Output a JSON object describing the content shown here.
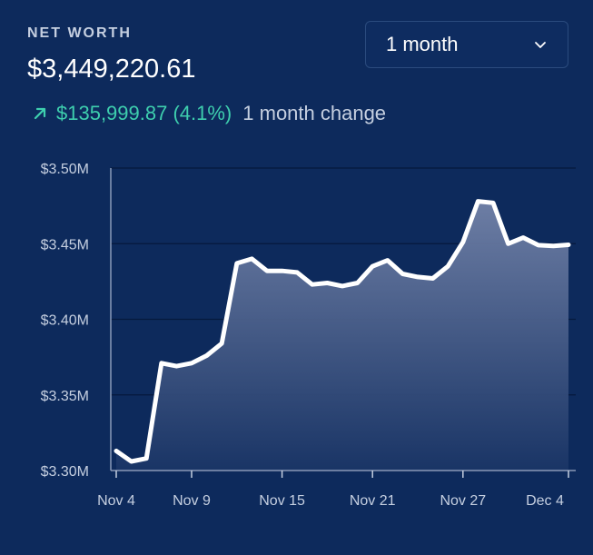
{
  "header": {
    "label": "NET WORTH",
    "value": "$3,449,220.61",
    "change_amount": "$135,999.87 (4.1%)",
    "change_period": "1 month change",
    "change_icon": "arrow-up-right-icon",
    "change_color": "#3ecfae"
  },
  "range_select": {
    "selected": "1 month",
    "icon": "chevron-down-icon"
  },
  "chart_data": {
    "type": "area",
    "ylim": [
      3300000,
      3500000
    ],
    "y_ticks": [
      {
        "value": 3500000,
        "label": "$3.50M"
      },
      {
        "value": 3450000,
        "label": "$3.45M"
      },
      {
        "value": 3400000,
        "label": "$3.40M"
      },
      {
        "value": 3350000,
        "label": "$3.35M"
      },
      {
        "value": 3300000,
        "label": "$3.30M"
      }
    ],
    "x_ticks": [
      {
        "date": "Nov 4",
        "label": "Nov 4"
      },
      {
        "date": "Nov 9",
        "label": "Nov 9"
      },
      {
        "date": "Nov 15",
        "label": "Nov 15"
      },
      {
        "date": "Nov 21",
        "label": "Nov 21"
      },
      {
        "date": "Nov 27",
        "label": "Nov 27"
      },
      {
        "date": "Dec 4",
        "label": "Dec 4"
      }
    ],
    "grid": true,
    "line_color": "#ffffff",
    "points": [
      {
        "date": "Nov 4",
        "value": 3313000
      },
      {
        "date": "Nov 5",
        "value": 3306000
      },
      {
        "date": "Nov 6",
        "value": 3308000
      },
      {
        "date": "Nov 7",
        "value": 3371000
      },
      {
        "date": "Nov 8",
        "value": 3369000
      },
      {
        "date": "Nov 9",
        "value": 3371000
      },
      {
        "date": "Nov 10",
        "value": 3376000
      },
      {
        "date": "Nov 11",
        "value": 3384000
      },
      {
        "date": "Nov 12",
        "value": 3437000
      },
      {
        "date": "Nov 13",
        "value": 3440000
      },
      {
        "date": "Nov 14",
        "value": 3432000
      },
      {
        "date": "Nov 15",
        "value": 3432000
      },
      {
        "date": "Nov 16",
        "value": 3431000
      },
      {
        "date": "Nov 17",
        "value": 3423000
      },
      {
        "date": "Nov 18",
        "value": 3424000
      },
      {
        "date": "Nov 19",
        "value": 3422000
      },
      {
        "date": "Nov 20",
        "value": 3424000
      },
      {
        "date": "Nov 21",
        "value": 3435000
      },
      {
        "date": "Nov 22",
        "value": 3439000
      },
      {
        "date": "Nov 23",
        "value": 3430000
      },
      {
        "date": "Nov 24",
        "value": 3428000
      },
      {
        "date": "Nov 25",
        "value": 3427000
      },
      {
        "date": "Nov 26",
        "value": 3435000
      },
      {
        "date": "Nov 27",
        "value": 3451000
      },
      {
        "date": "Nov 28",
        "value": 3478000
      },
      {
        "date": "Nov 29",
        "value": 3477000
      },
      {
        "date": "Nov 30",
        "value": 3450000
      },
      {
        "date": "Dec 1",
        "value": 3454000
      },
      {
        "date": "Dec 2",
        "value": 3449000
      },
      {
        "date": "Dec 3",
        "value": 3448500
      },
      {
        "date": "Dec 4",
        "value": 3449220.61
      }
    ]
  }
}
